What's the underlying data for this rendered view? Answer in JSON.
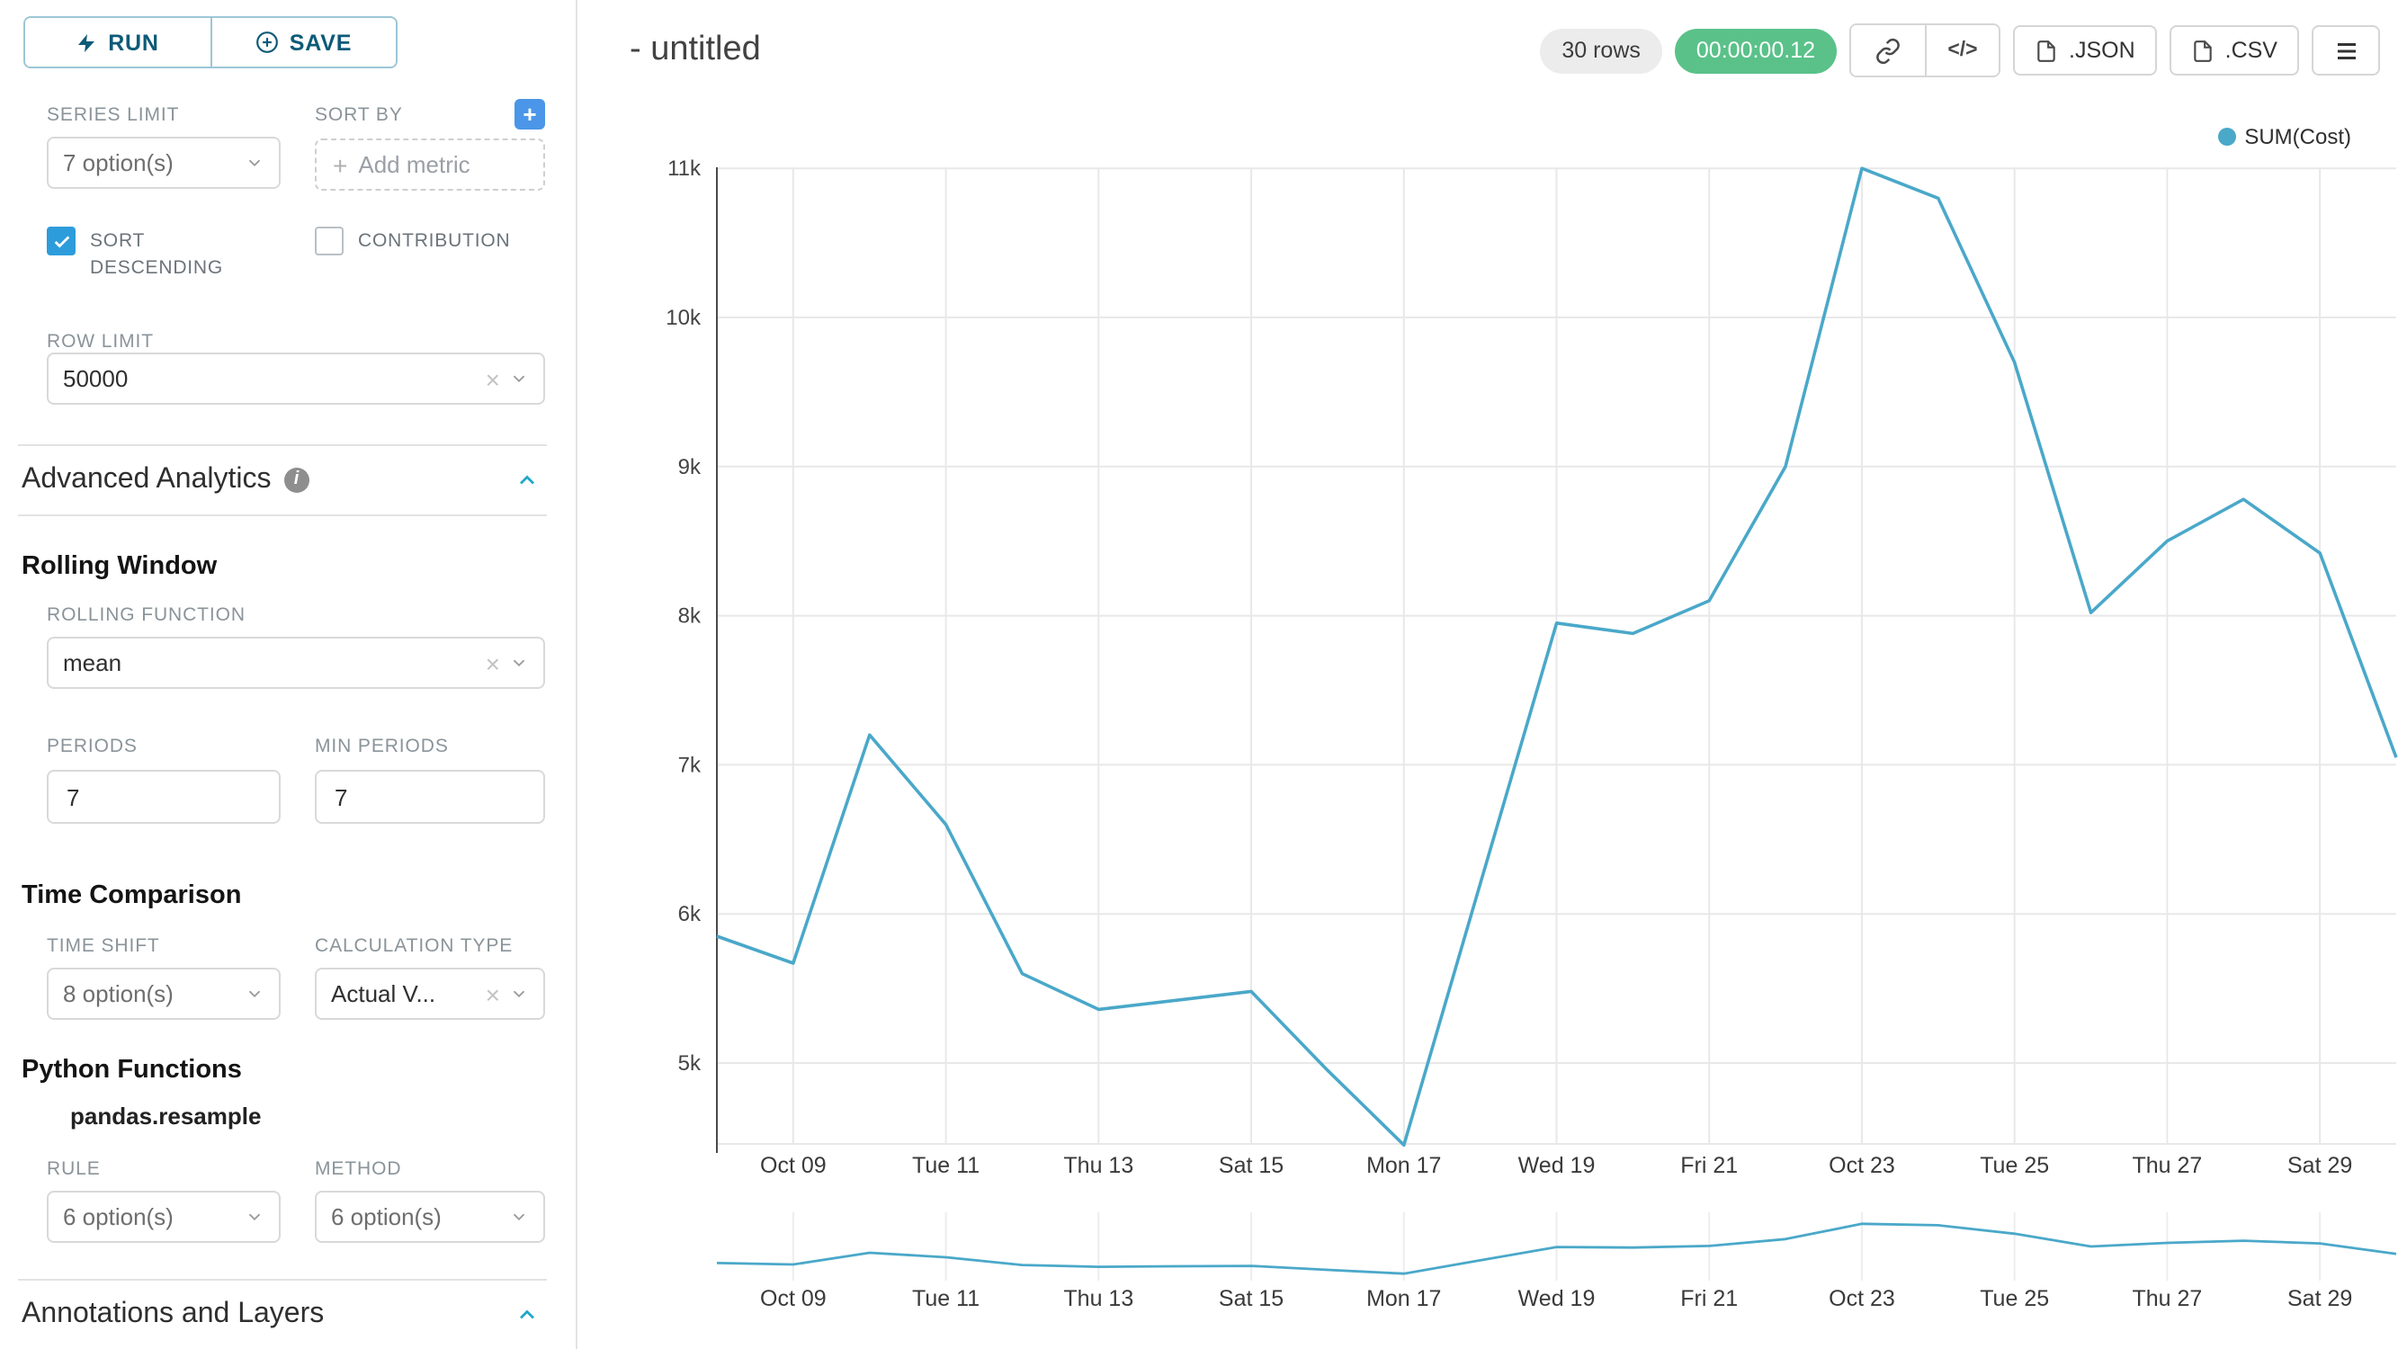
{
  "colors": {
    "accent": "#20a7c9",
    "series": "#4aa8c9",
    "success_badge": "#5ac189",
    "add_button_blue": "#4b96e8",
    "checkbox_blue": "#2d9cdb"
  },
  "icons": {
    "run": "lightning",
    "save": "plus-circle",
    "sort_by_add": "plus",
    "info": "info-circle",
    "collapse": "chevron-up",
    "select_arrow": "chevron-down",
    "clear": "×",
    "link": "link",
    "embed": "</>",
    "json_file": "file",
    "csv_file": "file",
    "menu": "hamburger",
    "legend_marker": "dot"
  },
  "sidebar": {
    "run_label": "RUN",
    "save_label": "SAVE",
    "series_limit": {
      "label": "SERIES LIMIT",
      "value": "7 option(s)"
    },
    "sort_by": {
      "label": "SORT BY",
      "placeholder": "Add metric"
    },
    "sort_descending": {
      "label": "SORT DESCENDING",
      "checked": true
    },
    "contribution": {
      "label": "CONTRIBUTION",
      "checked": false
    },
    "row_limit": {
      "label": "ROW LIMIT",
      "value": "50000"
    },
    "advanced_analytics": {
      "title": "Advanced Analytics"
    },
    "rolling_window": {
      "title": "Rolling Window",
      "rolling_function": {
        "label": "ROLLING FUNCTION",
        "value": "mean"
      },
      "periods": {
        "label": "PERIODS",
        "value": "7"
      },
      "min_periods": {
        "label": "MIN PERIODS",
        "value": "7"
      }
    },
    "time_comparison": {
      "title": "Time Comparison",
      "time_shift": {
        "label": "TIME SHIFT",
        "value": "8 option(s)"
      },
      "calculation_type": {
        "label": "CALCULATION TYPE",
        "value": "Actual V..."
      }
    },
    "python_functions": {
      "title": "Python Functions",
      "subtitle": "pandas.resample",
      "rule": {
        "label": "RULE",
        "value": "6 option(s)"
      },
      "method": {
        "label": "METHOD",
        "value": "6 option(s)"
      }
    },
    "annotations": {
      "title": "Annotations and Layers"
    }
  },
  "header": {
    "title": "- untitled",
    "rows_badge": "30 rows",
    "timer_badge": "00:00:00.12",
    "json_label": ".JSON",
    "csv_label": ".CSV"
  },
  "chart_data": {
    "type": "line",
    "title": "",
    "legend_position": "top-right",
    "grid": true,
    "series": [
      {
        "name": "SUM(Cost)",
        "color": "#4aa8c9",
        "values_k": [
          5.85,
          5.67,
          7.2,
          6.6,
          5.6,
          5.36,
          5.42,
          5.48,
          4.95,
          4.45,
          6.2,
          7.95,
          7.88,
          8.1,
          9.0,
          11.0,
          10.8,
          9.7,
          8.02,
          8.5,
          8.78,
          8.42,
          7.05
        ]
      }
    ],
    "x_dates": [
      "Oct 08",
      "Oct 09",
      "Oct 10",
      "Oct 11",
      "Oct 12",
      "Oct 13",
      "Oct 14",
      "Oct 15",
      "Oct 16",
      "Oct 17",
      "Oct 18",
      "Oct 19",
      "Oct 20",
      "Oct 21",
      "Oct 22",
      "Oct 23",
      "Oct 24",
      "Oct 25",
      "Oct 26",
      "Oct 27",
      "Oct 28",
      "Oct 29",
      "Oct 30"
    ],
    "x_tick_labels": [
      "Oct 09",
      "Tue 11",
      "Thu 13",
      "Sat 15",
      "Mon 17",
      "Wed 19",
      "Fri 21",
      "Oct 23",
      "Tue 25",
      "Thu 27",
      "Sat 29"
    ],
    "x_tick_indices": [
      1,
      3,
      5,
      7,
      9,
      11,
      13,
      15,
      17,
      19,
      21
    ],
    "y_ticks": [
      "5k",
      "6k",
      "7k",
      "8k",
      "9k",
      "10k",
      "11k"
    ],
    "y_tick_values": [
      5,
      6,
      7,
      8,
      9,
      10,
      11
    ],
    "ylim": [
      4.4,
      11.05
    ],
    "mini_ylim": [
      0,
      11.8
    ]
  }
}
